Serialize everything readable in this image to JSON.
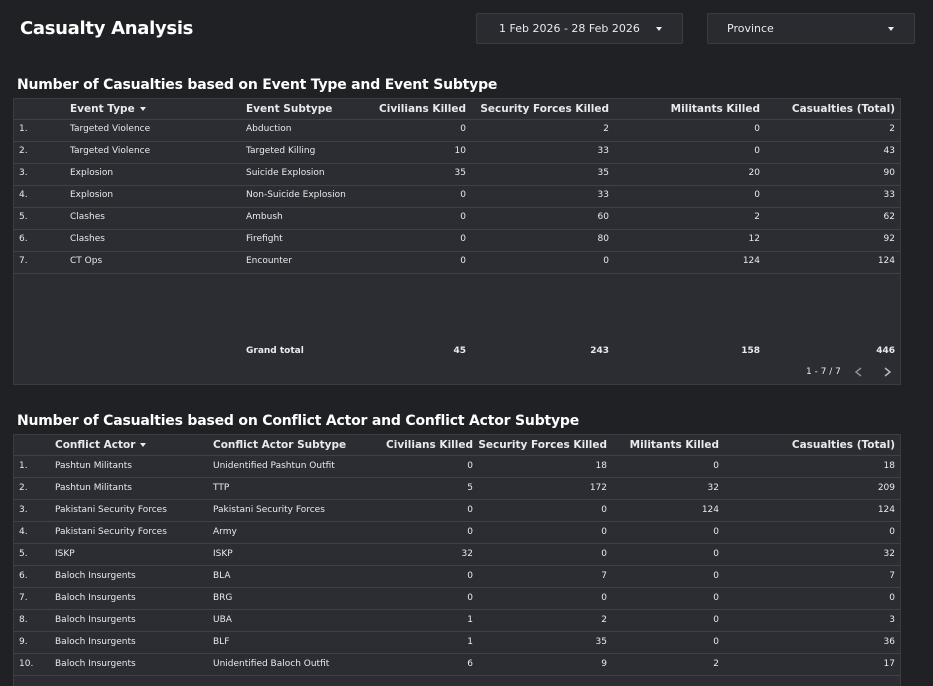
{
  "page": {
    "title": "Casualty Analysis"
  },
  "filters": {
    "date_range": "1 Feb 2026 - 28 Feb 2026",
    "province": "Province"
  },
  "table1": {
    "title": "Number of Casualties based on Event Type and Event Subtype",
    "headers": [
      "Event Type",
      "Event Subtype",
      "Civilians Killed",
      "Security Forces Killed",
      "Militants Killed",
      "Casualties (Total)"
    ],
    "rows": [
      [
        "1.",
        "Targeted Violence",
        "Abduction",
        "0",
        "2",
        "0",
        "2"
      ],
      [
        "2.",
        "Targeted Violence",
        "Targeted Killing",
        "10",
        "33",
        "0",
        "43"
      ],
      [
        "3.",
        "Explosion",
        "Suicide Explosion",
        "35",
        "35",
        "20",
        "90"
      ],
      [
        "4.",
        "Explosion",
        "Non-Suicide Explosion",
        "0",
        "33",
        "0",
        "33"
      ],
      [
        "5.",
        "Clashes",
        "Ambush",
        "0",
        "60",
        "2",
        "62"
      ],
      [
        "6.",
        "Clashes",
        "Firefight",
        "0",
        "80",
        "12",
        "92"
      ],
      [
        "7.",
        "CT Ops",
        "Encounter",
        "0",
        "0",
        "124",
        "124"
      ]
    ],
    "grand_total": [
      "Grand total",
      "45",
      "243",
      "158",
      "446"
    ],
    "pagination": "1 - 7 / 7"
  },
  "table2": {
    "title": "Number of Casualties based on Conflict Actor and Conflict Actor Subtype",
    "headers": [
      "Conflict Actor",
      "Conflict Actor Subtype",
      "Civilians Killed",
      "Security Forces Killed",
      "Militants Killed",
      "Casualties (Total)"
    ],
    "rows": [
      [
        "1.",
        "Pashtun Militants",
        "Unidentified Pashtun Outfit",
        "0",
        "18",
        "0",
        "18"
      ],
      [
        "2.",
        "Pashtun Militants",
        "TTP",
        "5",
        "172",
        "32",
        "209"
      ],
      [
        "3.",
        "Pakistani Security Forces",
        "Pakistani Security Forces",
        "0",
        "0",
        "124",
        "124"
      ],
      [
        "4.",
        "Pakistani Security Forces",
        "Army",
        "0",
        "0",
        "0",
        "0"
      ],
      [
        "5.",
        "ISKP",
        "ISKP",
        "32",
        "0",
        "0",
        "32"
      ],
      [
        "6.",
        "Baloch Insurgents",
        "BLA",
        "0",
        "7",
        "0",
        "7"
      ],
      [
        "7.",
        "Baloch Insurgents",
        "BRG",
        "0",
        "0",
        "0",
        "0"
      ],
      [
        "8.",
        "Baloch Insurgents",
        "UBA",
        "1",
        "2",
        "0",
        "3"
      ],
      [
        "9.",
        "Baloch Insurgents",
        "BLF",
        "1",
        "35",
        "0",
        "36"
      ],
      [
        "10.",
        "Baloch Insurgents",
        "Unidentified Baloch Outfit",
        "6",
        "9",
        "2",
        "17"
      ]
    ]
  }
}
